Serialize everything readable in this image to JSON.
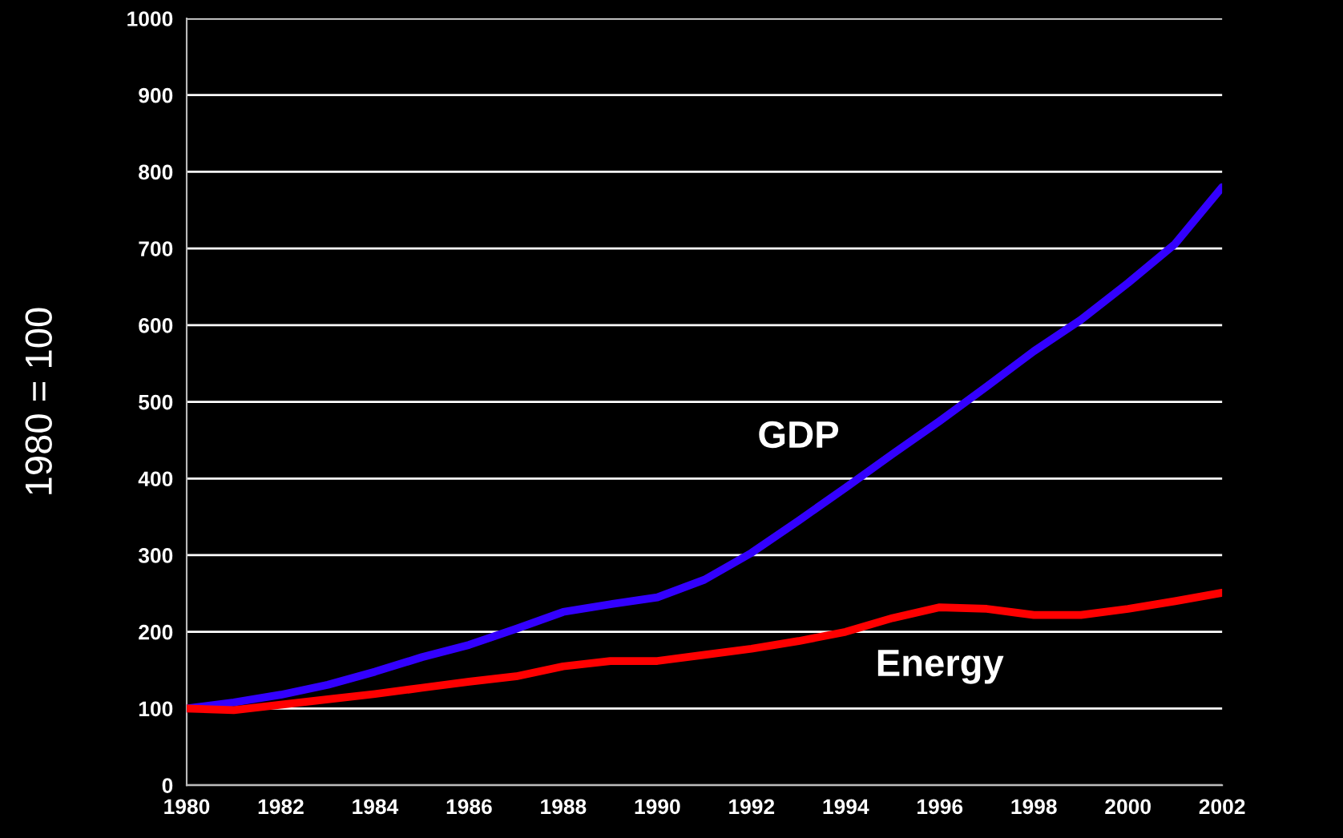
{
  "chart_data": {
    "type": "line",
    "ylabel": "1980 = 100",
    "x": [
      1980,
      1981,
      1982,
      1983,
      1984,
      1985,
      1986,
      1987,
      1988,
      1989,
      1990,
      1991,
      1992,
      1993,
      1994,
      1995,
      1996,
      1997,
      1998,
      1999,
      2000,
      2001,
      2002
    ],
    "series": [
      {
        "name": "GDP",
        "color": "#3300ff",
        "values": [
          100,
          108,
          118,
          131,
          148,
          167,
          183,
          204,
          226,
          236,
          245,
          268,
          303,
          345,
          388,
          432,
          475,
          520,
          566,
          607,
          655,
          706,
          780
        ]
      },
      {
        "name": "Energy",
        "color": "#ff0000",
        "values": [
          100,
          98,
          105,
          112,
          119,
          127,
          135,
          142,
          155,
          162,
          162,
          170,
          178,
          188,
          200,
          218,
          232,
          230,
          222,
          222,
          230,
          240,
          251
        ]
      }
    ],
    "xlim": [
      1980,
      2002
    ],
    "xticks": [
      1980,
      1982,
      1984,
      1986,
      1988,
      1990,
      1992,
      1994,
      1996,
      1998,
      2000,
      2002
    ],
    "ylim": [
      0,
      1000
    ],
    "yticks": [
      0,
      100,
      200,
      300,
      400,
      500,
      600,
      700,
      800,
      900,
      1000
    ],
    "grid": "y",
    "legend": false,
    "marker": "none",
    "line_style": "solid"
  }
}
